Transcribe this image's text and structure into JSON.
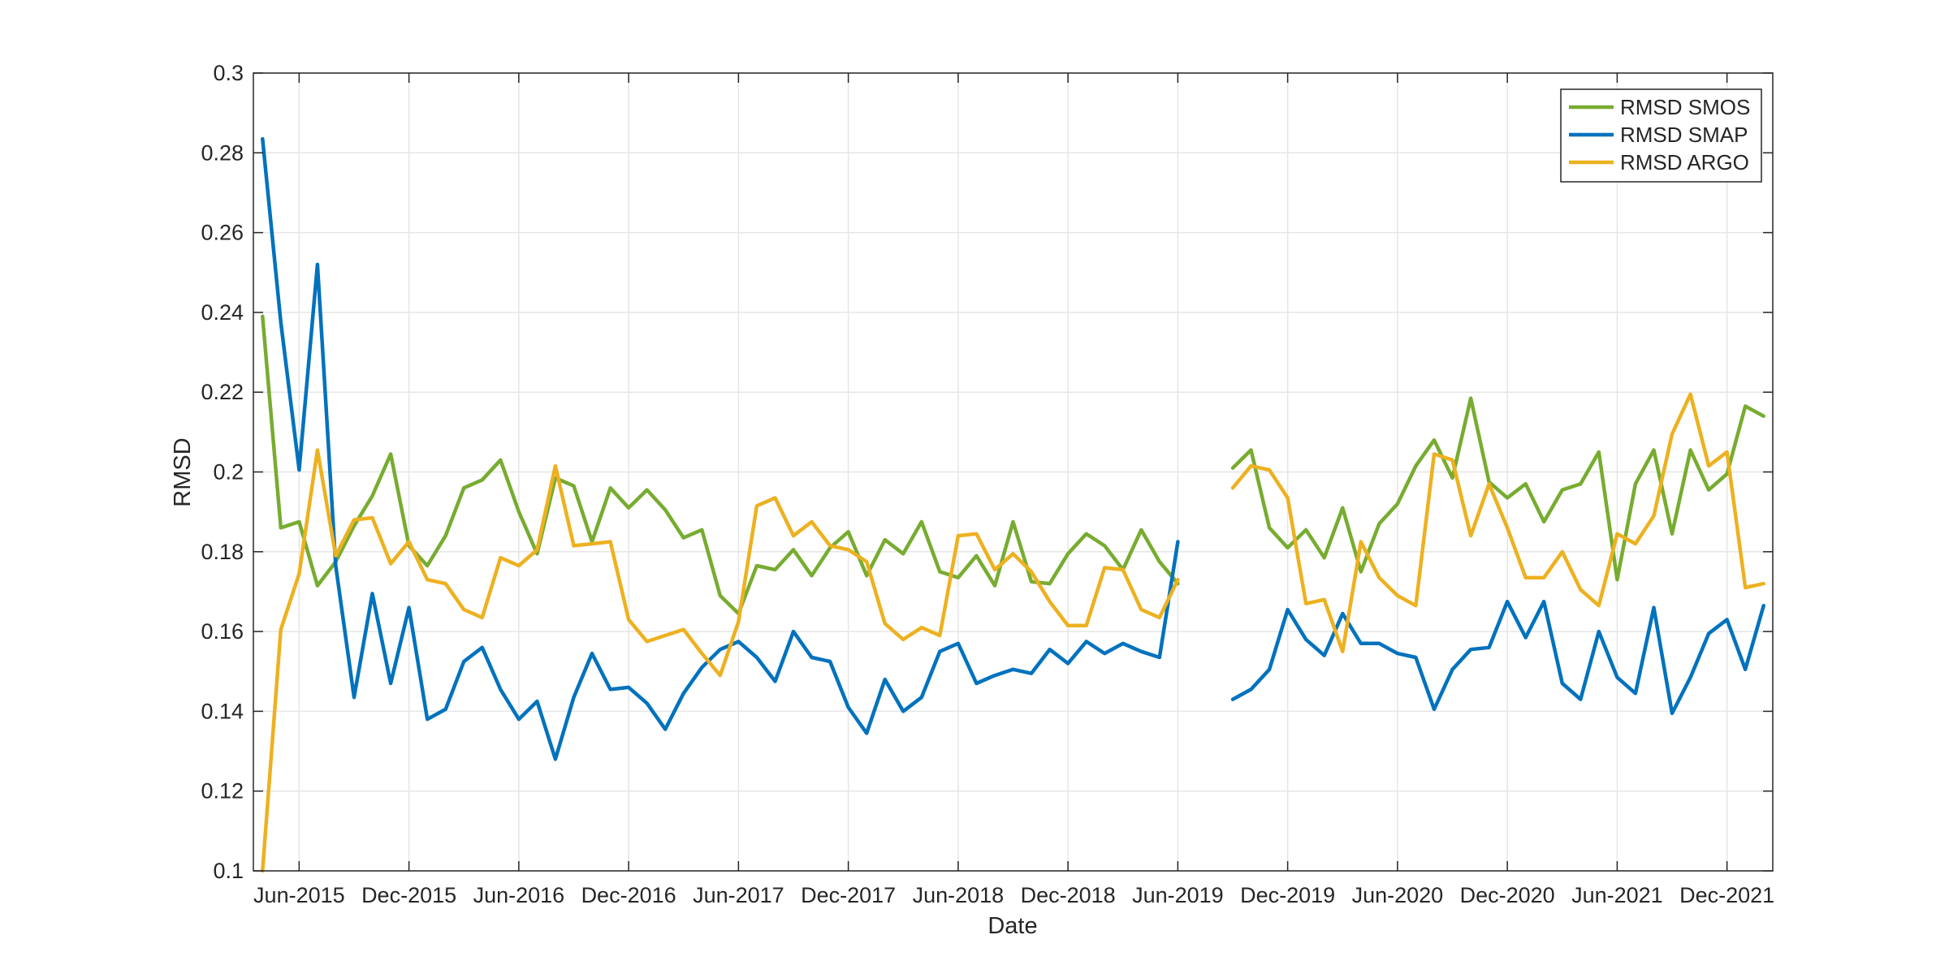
{
  "chart_data": {
    "type": "line",
    "title": "",
    "xlabel": "Date",
    "ylabel": "RMSD",
    "x_ticks": [
      "Jun-2015",
      "Dec-2015",
      "Jun-2016",
      "Dec-2016",
      "Jun-2017",
      "Dec-2017",
      "Jun-2018",
      "Dec-2018",
      "Jun-2019",
      "Dec-2019",
      "Jun-2020",
      "Dec-2020",
      "Jun-2021",
      "Dec-2021"
    ],
    "x_range": [
      "2015-04",
      "2022-02"
    ],
    "ylim": [
      0.1,
      0.3
    ],
    "y_ticks": [
      "0.1",
      "0.12",
      "0.14",
      "0.16",
      "0.18",
      "0.2",
      "0.22",
      "0.24",
      "0.26",
      "0.28",
      "0.3"
    ],
    "grid": true,
    "legend_position": "top-right",
    "series": [
      {
        "name": "RMSD SMOS",
        "color": "#77AC30",
        "points": [
          [
            "2015-04",
            0.239
          ],
          [
            "2015-05",
            0.186
          ],
          [
            "2015-06",
            0.1875
          ],
          [
            "2015-07",
            0.1715
          ],
          [
            "2015-08",
            0.1775
          ],
          [
            "2015-09",
            0.1865
          ],
          [
            "2015-10",
            0.194
          ],
          [
            "2015-11",
            0.2045
          ],
          [
            "2015-12",
            0.1815
          ],
          [
            "2016-01",
            0.1765
          ],
          [
            "2016-02",
            0.184
          ],
          [
            "2016-03",
            0.196
          ],
          [
            "2016-04",
            0.198
          ],
          [
            "2016-05",
            0.203
          ],
          [
            "2016-06",
            0.19
          ],
          [
            "2016-07",
            0.1795
          ],
          [
            "2016-08",
            0.1985
          ],
          [
            "2016-09",
            0.1965
          ],
          [
            "2016-10",
            0.1825
          ],
          [
            "2016-11",
            0.196
          ],
          [
            "2016-12",
            0.191
          ],
          [
            "2017-01",
            0.1955
          ],
          [
            "2017-02",
            0.1905
          ],
          [
            "2017-03",
            0.1835
          ],
          [
            "2017-04",
            0.1855
          ],
          [
            "2017-05",
            0.169
          ],
          [
            "2017-06",
            0.1645
          ],
          [
            "2017-07",
            0.1765
          ],
          [
            "2017-08",
            0.1755
          ],
          [
            "2017-09",
            0.1805
          ],
          [
            "2017-10",
            0.174
          ],
          [
            "2017-11",
            0.181
          ],
          [
            "2017-12",
            0.185
          ],
          [
            "2018-01",
            0.174
          ],
          [
            "2018-02",
            0.183
          ],
          [
            "2018-03",
            0.1795
          ],
          [
            "2018-04",
            0.1875
          ],
          [
            "2018-05",
            0.175
          ],
          [
            "2018-06",
            0.1735
          ],
          [
            "2018-07",
            0.179
          ],
          [
            "2018-08",
            0.1715
          ],
          [
            "2018-09",
            0.1875
          ],
          [
            "2018-10",
            0.1725
          ],
          [
            "2018-11",
            0.172
          ],
          [
            "2018-12",
            0.1795
          ],
          [
            "2019-01",
            0.1845
          ],
          [
            "2019-02",
            0.1815
          ],
          [
            "2019-03",
            0.1755
          ],
          [
            "2019-04",
            0.1855
          ],
          [
            "2019-05",
            0.1775
          ],
          [
            "2019-06",
            0.172
          ],
          null,
          null,
          [
            "2019-09",
            0.201
          ],
          [
            "2019-10",
            0.2055
          ],
          [
            "2019-11",
            0.186
          ],
          [
            "2019-12",
            0.181
          ],
          [
            "2020-01",
            0.1855
          ],
          [
            "2020-02",
            0.1785
          ],
          [
            "2020-03",
            0.191
          ],
          [
            "2020-04",
            0.175
          ],
          [
            "2020-05",
            0.187
          ],
          [
            "2020-06",
            0.192
          ],
          [
            "2020-07",
            0.2015
          ],
          [
            "2020-08",
            0.208
          ],
          [
            "2020-09",
            0.1985
          ],
          [
            "2020-10",
            0.2185
          ],
          [
            "2020-11",
            0.1975
          ],
          [
            "2020-12",
            0.1935
          ],
          [
            "2021-01",
            0.197
          ],
          [
            "2021-02",
            0.1875
          ],
          [
            "2021-03",
            0.1955
          ],
          [
            "2021-04",
            0.197
          ],
          [
            "2021-05",
            0.205
          ],
          [
            "2021-06",
            0.173
          ],
          [
            "2021-07",
            0.197
          ],
          [
            "2021-08",
            0.2055
          ],
          [
            "2021-09",
            0.1845
          ],
          [
            "2021-10",
            0.2055
          ],
          [
            "2021-11",
            0.1955
          ],
          [
            "2021-12",
            0.1995
          ],
          [
            "2022-01",
            0.2165
          ],
          [
            "2022-02",
            0.214
          ]
        ]
      },
      {
        "name": "RMSD SMAP",
        "color": "#0072BD",
        "points": [
          [
            "2015-04",
            0.2835
          ],
          [
            "2015-05",
            0.2375
          ],
          [
            "2015-06",
            0.2005
          ],
          [
            "2015-07",
            0.252
          ],
          [
            "2015-08",
            0.1765
          ],
          [
            "2015-09",
            0.1435
          ],
          [
            "2015-10",
            0.1695
          ],
          [
            "2015-11",
            0.147
          ],
          [
            "2015-12",
            0.166
          ],
          [
            "2016-01",
            0.138
          ],
          [
            "2016-02",
            0.1405
          ],
          [
            "2016-03",
            0.1525
          ],
          [
            "2016-04",
            0.156
          ],
          [
            "2016-05",
            0.1455
          ],
          [
            "2016-06",
            0.138
          ],
          [
            "2016-07",
            0.1425
          ],
          [
            "2016-08",
            0.128
          ],
          [
            "2016-09",
            0.1435
          ],
          [
            "2016-10",
            0.1545
          ],
          [
            "2016-11",
            0.1455
          ],
          [
            "2016-12",
            0.146
          ],
          [
            "2017-01",
            0.142
          ],
          [
            "2017-02",
            0.1355
          ],
          [
            "2017-03",
            0.1445
          ],
          [
            "2017-04",
            0.151
          ],
          [
            "2017-05",
            0.1555
          ],
          [
            "2017-06",
            0.1575
          ],
          [
            "2017-07",
            0.1535
          ],
          [
            "2017-08",
            0.1475
          ],
          [
            "2017-09",
            0.16
          ],
          [
            "2017-10",
            0.1535
          ],
          [
            "2017-11",
            0.1525
          ],
          [
            "2017-12",
            0.141
          ],
          [
            "2018-01",
            0.1345
          ],
          [
            "2018-02",
            0.148
          ],
          [
            "2018-03",
            0.14
          ],
          [
            "2018-04",
            0.1435
          ],
          [
            "2018-05",
            0.155
          ],
          [
            "2018-06",
            0.157
          ],
          [
            "2018-07",
            0.147
          ],
          [
            "2018-08",
            0.149
          ],
          [
            "2018-09",
            0.1505
          ],
          [
            "2018-10",
            0.1495
          ],
          [
            "2018-11",
            0.1555
          ],
          [
            "2018-12",
            0.152
          ],
          [
            "2019-01",
            0.1575
          ],
          [
            "2019-02",
            0.1545
          ],
          [
            "2019-03",
            0.157
          ],
          [
            "2019-04",
            0.155
          ],
          [
            "2019-05",
            0.1535
          ],
          [
            "2019-06",
            0.1825
          ],
          null,
          null,
          [
            "2019-09",
            0.143
          ],
          [
            "2019-10",
            0.1455
          ],
          [
            "2019-11",
            0.1505
          ],
          [
            "2019-12",
            0.1655
          ],
          [
            "2020-01",
            0.158
          ],
          [
            "2020-02",
            0.154
          ],
          [
            "2020-03",
            0.1645
          ],
          [
            "2020-04",
            0.157
          ],
          [
            "2020-05",
            0.157
          ],
          [
            "2020-06",
            0.1545
          ],
          [
            "2020-07",
            0.1535
          ],
          [
            "2020-08",
            0.1405
          ],
          [
            "2020-09",
            0.1505
          ],
          [
            "2020-10",
            0.1555
          ],
          [
            "2020-11",
            0.156
          ],
          [
            "2020-12",
            0.1675
          ],
          [
            "2021-01",
            0.1585
          ],
          [
            "2021-02",
            0.1675
          ],
          [
            "2021-03",
            0.147
          ],
          [
            "2021-04",
            0.143
          ],
          [
            "2021-05",
            0.16
          ],
          [
            "2021-06",
            0.1485
          ],
          [
            "2021-07",
            0.1445
          ],
          [
            "2021-08",
            0.166
          ],
          [
            "2021-09",
            0.1395
          ],
          [
            "2021-10",
            0.1485
          ],
          [
            "2021-11",
            0.1595
          ],
          [
            "2021-12",
            0.163
          ],
          [
            "2022-01",
            0.1505
          ],
          [
            "2022-02",
            0.1665
          ]
        ]
      },
      {
        "name": "RMSD ARGO",
        "color": "#EDB120",
        "points": [
          [
            "2015-04",
            0.1
          ],
          [
            "2015-05",
            0.1605
          ],
          [
            "2015-06",
            0.1745
          ],
          [
            "2015-07",
            0.2055
          ],
          [
            "2015-08",
            0.179
          ],
          [
            "2015-09",
            0.188
          ],
          [
            "2015-10",
            0.1885
          ],
          [
            "2015-11",
            0.177
          ],
          [
            "2015-12",
            0.1825
          ],
          [
            "2016-01",
            0.173
          ],
          [
            "2016-02",
            0.172
          ],
          [
            "2016-03",
            0.1655
          ],
          [
            "2016-04",
            0.1635
          ],
          [
            "2016-05",
            0.1785
          ],
          [
            "2016-06",
            0.1765
          ],
          [
            "2016-07",
            0.1805
          ],
          [
            "2016-08",
            0.2015
          ],
          [
            "2016-09",
            0.1815
          ],
          [
            "2016-10",
            0.182
          ],
          [
            "2016-11",
            0.1825
          ],
          [
            "2016-12",
            0.163
          ],
          [
            "2017-01",
            0.1575
          ],
          [
            "2017-02",
            0.159
          ],
          [
            "2017-03",
            0.1605
          ],
          [
            "2017-04",
            0.1545
          ],
          [
            "2017-05",
            0.149
          ],
          [
            "2017-06",
            0.1625
          ],
          [
            "2017-07",
            0.1915
          ],
          [
            "2017-08",
            0.1935
          ],
          [
            "2017-09",
            0.184
          ],
          [
            "2017-10",
            0.1875
          ],
          [
            "2017-11",
            0.1815
          ],
          [
            "2017-12",
            0.1805
          ],
          [
            "2018-01",
            0.1775
          ],
          [
            "2018-02",
            0.162
          ],
          [
            "2018-03",
            0.158
          ],
          [
            "2018-04",
            0.161
          ],
          [
            "2018-05",
            0.159
          ],
          [
            "2018-06",
            0.184
          ],
          [
            "2018-07",
            0.1845
          ],
          [
            "2018-08",
            0.1755
          ],
          [
            "2018-09",
            0.1795
          ],
          [
            "2018-10",
            0.175
          ],
          [
            "2018-11",
            0.1675
          ],
          [
            "2018-12",
            0.1615
          ],
          [
            "2019-01",
            0.1615
          ],
          [
            "2019-02",
            0.176
          ],
          [
            "2019-03",
            0.1755
          ],
          [
            "2019-04",
            0.1655
          ],
          [
            "2019-05",
            0.1635
          ],
          [
            "2019-06",
            0.173
          ],
          null,
          null,
          [
            "2019-09",
            0.196
          ],
          [
            "2019-10",
            0.2015
          ],
          [
            "2019-11",
            0.2005
          ],
          [
            "2019-12",
            0.1935
          ],
          [
            "2020-01",
            0.167
          ],
          [
            "2020-02",
            0.168
          ],
          [
            "2020-03",
            0.155
          ],
          [
            "2020-04",
            0.1825
          ],
          [
            "2020-05",
            0.1735
          ],
          [
            "2020-06",
            0.169
          ],
          [
            "2020-07",
            0.1665
          ],
          [
            "2020-08",
            0.2045
          ],
          [
            "2020-09",
            0.203
          ],
          [
            "2020-10",
            0.184
          ],
          [
            "2020-11",
            0.197
          ],
          [
            "2020-12",
            0.186
          ],
          [
            "2021-01",
            0.1735
          ],
          [
            "2021-02",
            0.1735
          ],
          [
            "2021-03",
            0.18
          ],
          [
            "2021-04",
            0.1705
          ],
          [
            "2021-05",
            0.1665
          ],
          [
            "2021-06",
            0.1845
          ],
          [
            "2021-07",
            0.182
          ],
          [
            "2021-08",
            0.189
          ],
          [
            "2021-09",
            0.2095
          ],
          [
            "2021-10",
            0.2195
          ],
          [
            "2021-11",
            0.2015
          ],
          [
            "2021-12",
            0.205
          ],
          [
            "2022-01",
            0.171
          ],
          [
            "2022-02",
            0.172
          ]
        ]
      }
    ]
  }
}
